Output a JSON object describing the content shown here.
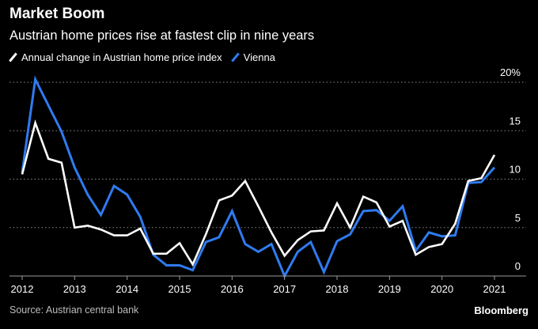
{
  "header": {
    "title": "Market Boom",
    "subtitle": "Austrian home prices rise at fastest clip in nine years"
  },
  "footer": {
    "source": "Source: Austrian central bank",
    "brand": "Bloomberg"
  },
  "chart_data": {
    "type": "line",
    "title": "Market Boom",
    "subtitle": "Austrian home prices rise at fastest clip in nine years",
    "xlabel": "",
    "ylabel": "",
    "xlim": [
      2012.0,
      2021.0
    ],
    "ylim": [
      0,
      20
    ],
    "ytick_values": [
      0,
      5,
      10,
      15,
      20
    ],
    "ytick_labels": [
      "0",
      "5",
      "10",
      "15",
      "20%"
    ],
    "xtick_values": [
      2012,
      2013,
      2014,
      2015,
      2016,
      2017,
      2018,
      2019,
      2020,
      2021
    ],
    "xtick_labels": [
      "2012",
      "2013",
      "2014",
      "2015",
      "2016",
      "2017",
      "2018",
      "2019",
      "2020",
      "2021"
    ],
    "grid": true,
    "legend_position": "top-left",
    "x": [
      2012.0,
      2012.25,
      2012.5,
      2012.75,
      2013.0,
      2013.25,
      2013.5,
      2013.75,
      2014.0,
      2014.25,
      2014.5,
      2014.75,
      2015.0,
      2015.25,
      2015.5,
      2015.75,
      2016.0,
      2016.25,
      2016.5,
      2016.75,
      2017.0,
      2017.25,
      2017.5,
      2017.75,
      2018.0,
      2018.25,
      2018.5,
      2018.75,
      2019.0,
      2019.25,
      2019.5,
      2019.75,
      2020.0,
      2020.25,
      2020.5,
      2020.75,
      2021.0
    ],
    "series": [
      {
        "name": "Annual change in Austrian home price index",
        "color": "#ffffff",
        "values": [
          10.5,
          15.8,
          12.1,
          11.7,
          5.0,
          5.2,
          4.8,
          4.2,
          4.2,
          4.9,
          2.3,
          2.3,
          3.4,
          1.2,
          4.3,
          7.8,
          8.3,
          9.8,
          7.2,
          4.5,
          2.1,
          3.7,
          4.6,
          4.7,
          7.5,
          5.0,
          8.2,
          7.6,
          5.1,
          5.7,
          2.2,
          3.0,
          3.3,
          5.4,
          9.8,
          10.1,
          12.5
        ],
        "x": [
          2012.0,
          2012.25,
          2012.5,
          2012.75,
          2013.0,
          2013.25,
          2013.5,
          2013.75,
          2014.0,
          2014.25,
          2014.5,
          2014.75,
          2015.0,
          2015.25,
          2015.5,
          2015.75,
          2016.0,
          2016.25,
          2016.5,
          2016.75,
          2017.0,
          2017.25,
          2017.5,
          2017.75,
          2018.0,
          2018.25,
          2018.5,
          2018.75,
          2019.0,
          2019.25,
          2019.5,
          2019.75,
          2020.0,
          2020.25,
          2020.5,
          2020.75,
          2021.0
        ]
      },
      {
        "name": "Vienna",
        "color": "#2f7bf0",
        "values": [
          10.7,
          20.3,
          17.6,
          14.9,
          11.2,
          8.4,
          6.3,
          9.3,
          8.4,
          6.1,
          2.2,
          1.1,
          1.1,
          0.6,
          3.5,
          4.0,
          6.7,
          3.3,
          2.5,
          3.3,
          0.0,
          2.5,
          3.5,
          0.4,
          3.6,
          4.3,
          6.7,
          6.8,
          5.7,
          7.2,
          2.6,
          4.5,
          4.1,
          4.2,
          9.6,
          9.7,
          11.2
        ],
        "x": [
          2012.0,
          2012.25,
          2012.5,
          2012.75,
          2013.0,
          2013.25,
          2013.5,
          2013.75,
          2014.0,
          2014.25,
          2014.5,
          2014.75,
          2015.0,
          2015.25,
          2015.5,
          2015.75,
          2016.0,
          2016.25,
          2016.5,
          2016.75,
          2017.0,
          2017.25,
          2017.5,
          2017.75,
          2018.0,
          2018.25,
          2018.5,
          2018.75,
          2019.0,
          2019.25,
          2019.5,
          2019.75,
          2020.0,
          2020.25,
          2020.5,
          2020.75,
          2021.0
        ]
      }
    ]
  }
}
